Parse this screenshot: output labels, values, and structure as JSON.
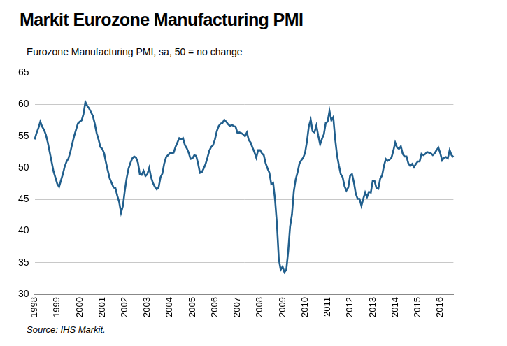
{
  "chart_data": {
    "type": "line",
    "title": "Markit Eurozone Manufacturing PMI",
    "subtitle": "Eurozone Manufacturing PMI, sa, 50 = no change",
    "source": "Source: IHS Markit.",
    "categories": [
      "1998",
      null,
      null,
      null,
      null,
      null,
      null,
      null,
      null,
      null,
      null,
      null,
      "1999",
      null,
      null,
      null,
      null,
      null,
      null,
      null,
      null,
      null,
      null,
      null,
      "2000",
      null,
      null,
      null,
      null,
      null,
      null,
      null,
      null,
      null,
      null,
      null,
      "2001",
      null,
      null,
      null,
      null,
      null,
      null,
      null,
      null,
      null,
      null,
      null,
      "2002",
      null,
      null,
      null,
      null,
      null,
      null,
      null,
      null,
      null,
      null,
      null,
      "2003",
      null,
      null,
      null,
      null,
      null,
      null,
      null,
      null,
      null,
      null,
      null,
      "2004",
      null,
      null,
      null,
      null,
      null,
      null,
      null,
      null,
      null,
      null,
      null,
      "2005",
      null,
      null,
      null,
      null,
      null,
      null,
      null,
      null,
      null,
      null,
      null,
      "2006",
      null,
      null,
      null,
      null,
      null,
      null,
      null,
      null,
      null,
      null,
      null,
      "2007",
      null,
      null,
      null,
      null,
      null,
      null,
      null,
      null,
      null,
      null,
      null,
      "2008",
      null,
      null,
      null,
      null,
      null,
      null,
      null,
      null,
      null,
      null,
      null,
      "2009",
      null,
      null,
      null,
      null,
      null,
      null,
      null,
      null,
      null,
      null,
      null,
      "2010",
      null,
      null,
      null,
      null,
      null,
      null,
      null,
      null,
      null,
      null,
      null,
      "2011",
      null,
      null,
      null,
      null,
      null,
      null,
      null,
      null,
      null,
      null,
      null,
      "2012",
      null,
      null,
      null,
      null,
      null,
      null,
      null,
      null,
      null,
      null,
      null,
      "2013",
      null,
      null,
      null,
      null,
      null,
      null,
      null,
      null,
      null,
      null,
      null,
      "2014",
      null,
      null,
      null,
      null,
      null,
      null,
      null,
      null,
      null,
      null,
      null,
      "2015",
      null,
      null,
      null,
      null,
      null,
      null,
      null,
      null,
      null,
      null,
      null,
      "2016",
      null,
      null,
      null,
      null,
      null,
      null,
      null
    ],
    "values": [
      54.5,
      55.5,
      56.3,
      57.3,
      56.5,
      56.0,
      55.2,
      54.0,
      52.5,
      51.0,
      49.5,
      48.5,
      47.5,
      47.0,
      48.0,
      49.0,
      50.2,
      51.0,
      51.5,
      52.5,
      53.8,
      55.0,
      56.0,
      57.0,
      57.3,
      57.5,
      58.5,
      60.4,
      59.8,
      59.4,
      58.8,
      58.2,
      57.0,
      55.5,
      54.5,
      53.3,
      53.0,
      52.3,
      50.8,
      49.5,
      48.3,
      47.6,
      46.9,
      46.8,
      45.6,
      44.6,
      42.9,
      44.0,
      46.4,
      48.4,
      49.9,
      50.8,
      51.5,
      51.8,
      51.6,
      50.8,
      49.0,
      48.9,
      49.5,
      48.7,
      49.0,
      50.0,
      48.5,
      47.6,
      47.0,
      46.6,
      46.9,
      48.5,
      49.1,
      50.7,
      51.7,
      52.0,
      52.3,
      52.3,
      52.4,
      53.3,
      54.0,
      54.7,
      54.5,
      54.7,
      53.6,
      53.1,
      52.4,
      51.4,
      51.5,
      52.0,
      51.9,
      50.7,
      49.2,
      49.3,
      49.9,
      50.6,
      51.6,
      52.7,
      53.3,
      53.6,
      54.5,
      55.8,
      56.6,
      57.0,
      57.1,
      57.6,
      57.3,
      56.9,
      56.6,
      56.8,
      56.6,
      56.5,
      55.5,
      55.6,
      55.5,
      55.3,
      55.0,
      55.6,
      54.4,
      54.0,
      53.2,
      52.5,
      51.6,
      52.8,
      52.8,
      52.3,
      52.0,
      50.7,
      49.9,
      49.2,
      47.4,
      47.6,
      45.0,
      41.1,
      35.6,
      33.9,
      34.4,
      33.5,
      33.9,
      36.8,
      40.7,
      42.6,
      46.3,
      48.2,
      49.3,
      50.7,
      51.2,
      51.6,
      52.4,
      54.2,
      56.6,
      57.6,
      55.8,
      55.6,
      56.7,
      55.1,
      53.7,
      54.6,
      55.3,
      57.1,
      57.3,
      59.0,
      57.5,
      58.0,
      54.6,
      52.0,
      50.4,
      49.0,
      48.5,
      47.1,
      46.4,
      46.9,
      48.8,
      49.0,
      47.7,
      45.9,
      45.1,
      45.1,
      44.0,
      45.1,
      46.1,
      45.4,
      46.2,
      46.1,
      47.9,
      47.9,
      46.8,
      46.7,
      48.3,
      48.8,
      50.3,
      51.4,
      51.1,
      51.3,
      51.6,
      52.7,
      54.0,
      53.2,
      53.0,
      53.4,
      52.2,
      51.8,
      51.8,
      50.7,
      50.3,
      50.6,
      50.1,
      50.6,
      51.0,
      51.0,
      52.2,
      52.0,
      52.2,
      52.5,
      52.4,
      52.3,
      52.0,
      52.3,
      52.8,
      53.2,
      52.3,
      51.2,
      51.6,
      51.7,
      51.5,
      52.8,
      52.0,
      51.7
    ],
    "color": "#215f8d",
    "ylim": [
      30,
      65
    ],
    "yticks": [
      30,
      35,
      40,
      45,
      50,
      55,
      60,
      65
    ],
    "grid": true
  }
}
